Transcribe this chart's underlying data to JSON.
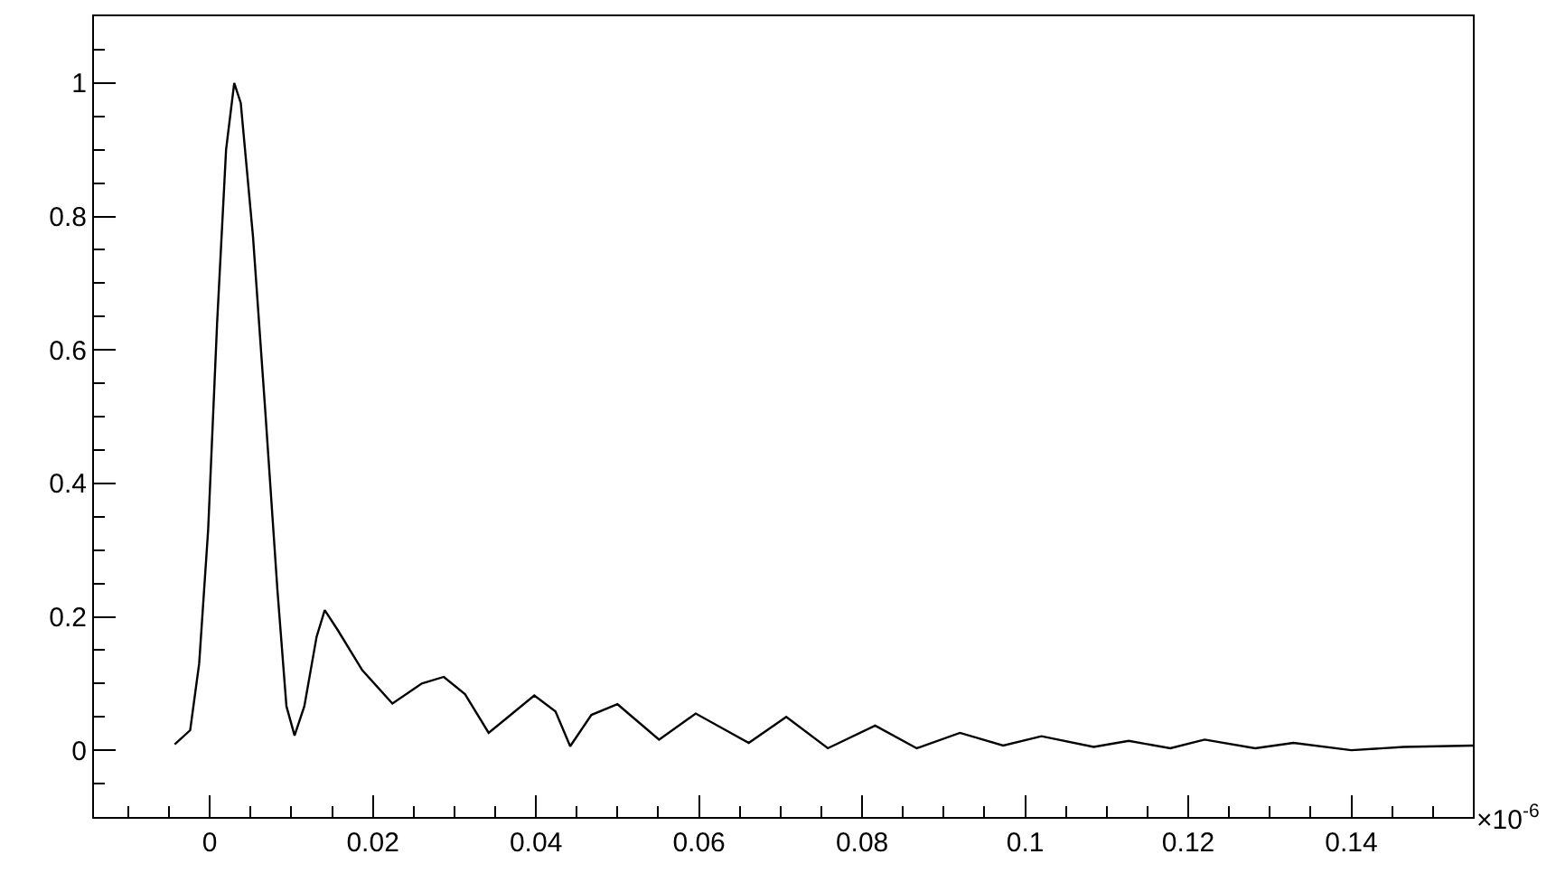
{
  "chart_data": {
    "type": "line",
    "x": [
      -0.0043,
      -0.0024,
      -0.0013,
      -0.0002,
      0.0009,
      0.002,
      0.003,
      0.0038,
      0.0053,
      0.0068,
      0.0083,
      0.0094,
      0.0104,
      0.0116,
      0.0131,
      0.0141,
      0.0157,
      0.0187,
      0.0224,
      0.026,
      0.0287,
      0.0313,
      0.0342,
      0.0364,
      0.0398,
      0.0424,
      0.0442,
      0.0468,
      0.05,
      0.0551,
      0.0596,
      0.0661,
      0.0707,
      0.0758,
      0.0816,
      0.0867,
      0.092,
      0.0973,
      0.102,
      0.1084,
      0.1127,
      0.1178,
      0.122,
      0.1282,
      0.1329,
      0.14,
      0.1464,
      0.1549
    ],
    "series": [
      {
        "color": "#000000",
        "values": [
          0.009,
          0.03,
          0.13,
          0.33,
          0.64,
          0.9,
          1.0,
          0.97,
          0.77,
          0.51,
          0.24,
          0.066,
          0.022,
          0.066,
          0.17,
          0.21,
          0.18,
          0.12,
          0.07,
          0.1,
          0.11,
          0.084,
          0.026,
          0.048,
          0.082,
          0.058,
          0.006,
          0.053,
          0.069,
          0.016,
          0.055,
          0.011,
          0.05,
          0.003,
          0.037,
          0.003,
          0.026,
          0.007,
          0.021,
          0.005,
          0.014,
          0.003,
          0.016,
          0.003,
          0.011,
          0.0,
          0.005,
          0.007
        ]
      }
    ],
    "xlim": [
      -0.0142,
      0.1549
    ],
    "ylim": [
      -0.1,
      1.1
    ],
    "xticks": [
      0,
      0.02,
      0.04,
      0.06,
      0.08,
      0.1,
      0.12,
      0.14
    ],
    "yticks": [
      0,
      0.2,
      0.4,
      0.6,
      0.8,
      1
    ],
    "annotations": [
      "×10$^{-6}$"
    ],
    "marker": "none",
    "line_style": "solid"
  }
}
